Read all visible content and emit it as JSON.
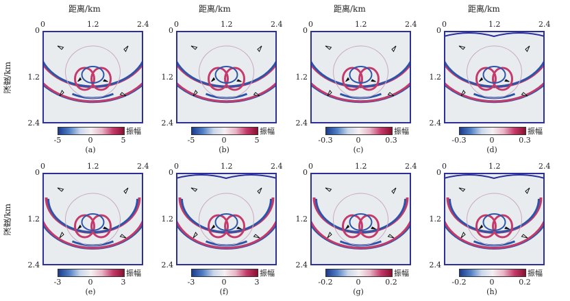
{
  "xaxis": {
    "title": "距离/km",
    "ticks": [
      "0",
      "1.2",
      "2.4"
    ]
  },
  "yaxis": {
    "title": "深度/km",
    "ticks": [
      "0",
      "1.2",
      "2.4"
    ]
  },
  "colorbar_label": "振幅",
  "colors": {
    "frame": "#2a2f9a",
    "positive": "#c43a6a",
    "negative": "#2b55a8",
    "background": "#e9ecef"
  },
  "panels": [
    {
      "caption": "(a)",
      "cbar_ticks": [
        "-5",
        "0",
        "5"
      ],
      "free_surface": "flat"
    },
    {
      "caption": "(b)",
      "cbar_ticks": [
        "-5",
        "0",
        "5"
      ],
      "free_surface": "flat"
    },
    {
      "caption": "(c)",
      "cbar_ticks": [
        "-0.3",
        "0",
        "0.3"
      ],
      "free_surface": "flat"
    },
    {
      "caption": "(d)",
      "cbar_ticks": [
        "-0.3",
        "0",
        "0.3"
      ],
      "free_surface": "curved"
    },
    {
      "caption": "(e)",
      "cbar_ticks": [
        "-3",
        "0",
        "3"
      ],
      "free_surface": "flat"
    },
    {
      "caption": "(f)",
      "cbar_ticks": [
        "-3",
        "0",
        "3"
      ],
      "free_surface": "curved"
    },
    {
      "caption": "(g)",
      "cbar_ticks": [
        "-0.2",
        "0",
        "0.2"
      ],
      "free_surface": "flat"
    },
    {
      "caption": "(h)",
      "cbar_ticks": [
        "-0.2",
        "0",
        "0.2"
      ],
      "free_surface": "curved"
    }
  ]
}
